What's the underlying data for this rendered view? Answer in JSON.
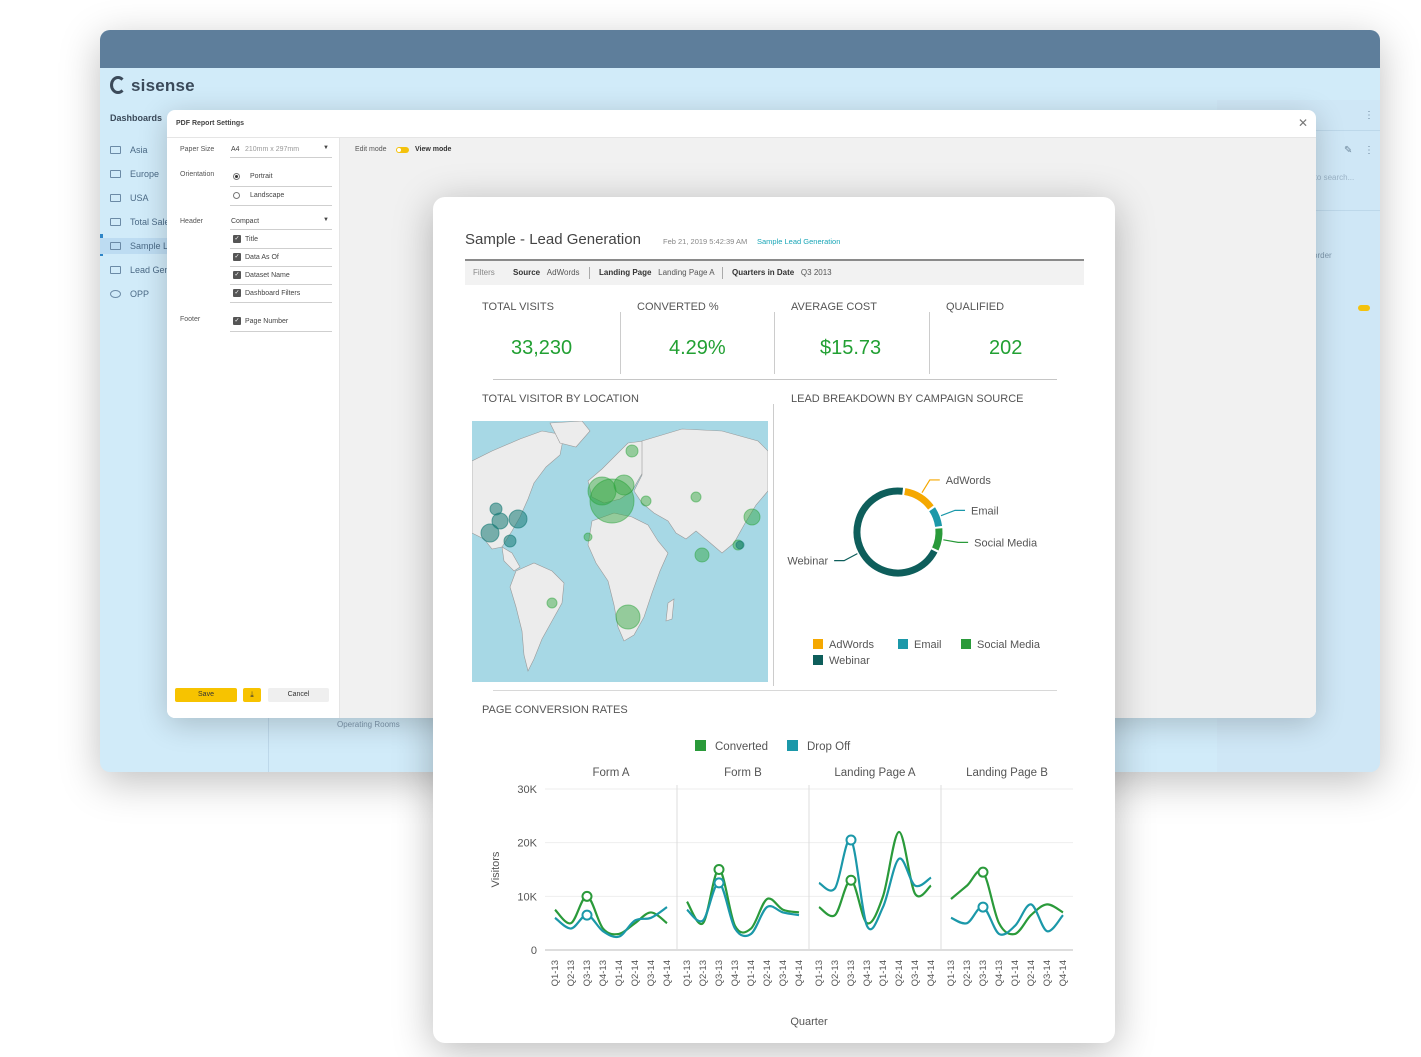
{
  "app": {
    "logo_text": "sisense",
    "dashboards_heading": "Dashboards",
    "nav_items": [
      "Asia",
      "Europe",
      "USA",
      "Total Sale",
      "Sample L",
      "Lead Gen",
      "OPP"
    ],
    "right_panel": {
      "search_placeholder": "g to search...",
      "order_label": "order"
    },
    "background_label": "Operating Rooms"
  },
  "dialog": {
    "title": "PDF Report Settings",
    "paper_size_label": "Paper Size",
    "paper_size_value": "A4",
    "paper_size_dims": "210mm x 297mm",
    "orientation_label": "Orientation",
    "orientation_options": [
      "Portrait",
      "Landscape"
    ],
    "header_label": "Header",
    "header_value": "Compact",
    "header_options": [
      "Title",
      "Data As Of",
      "Dataset Name",
      "Dashboard Filters"
    ],
    "footer_label": "Footer",
    "footer_options": [
      "Page Number"
    ],
    "save_label": "Save",
    "cancel_label": "Cancel",
    "edit_mode_label": "Edit mode",
    "view_mode_label": "View mode"
  },
  "report": {
    "title": "Sample - Lead Generation",
    "date": "Feb 21, 2019 5:42:39 AM",
    "link": "Sample Lead Generation",
    "filters_label": "Filters",
    "filters": [
      {
        "name": "Source",
        "value": "AdWords"
      },
      {
        "name": "Landing Page",
        "value": "Landing Page A"
      },
      {
        "name": "Quarters in Date",
        "value": "Q3 2013"
      }
    ],
    "kpis": [
      {
        "label": "TOTAL VISITS",
        "value": "33,230"
      },
      {
        "label": "CONVERTED %",
        "value": "4.29%"
      },
      {
        "label": "AVERAGE COST",
        "value": "$15.73"
      },
      {
        "label": "QUALIFIED",
        "value": "202"
      }
    ],
    "map_title": "TOTAL VISITOR BY LOCATION",
    "donut_title": "LEAD BREAKDOWN BY CAMPAIGN SOURCE",
    "conversion_title": "PAGE CONVERSION RATES"
  },
  "chart_data": [
    {
      "type": "pie",
      "title": "LEAD BREAKDOWN BY CAMPAIGN SOURCE",
      "categories": [
        "AdWords",
        "Email",
        "Social Media",
        "Webinar"
      ],
      "values": [
        13,
        8,
        9,
        70
      ],
      "colors": [
        "#f5a800",
        "#1b98a9",
        "#2a9a3a",
        "#0e5e5b"
      ],
      "legend": "bottom"
    },
    {
      "type": "line",
      "title": "PAGE CONVERSION RATES",
      "xlabel": "Quarter",
      "ylabel": "Visitors",
      "ylim": [
        0,
        30000
      ],
      "yticks": [
        "0",
        "10K",
        "20K",
        "30K"
      ],
      "categories": [
        "Q1-13",
        "Q2-13",
        "Q3-13",
        "Q4-13",
        "Q1-14",
        "Q2-14",
        "Q3-14",
        "Q4-14"
      ],
      "series_colors": {
        "Converted": "#2a9a3a",
        "Drop Off": "#1b98a9"
      },
      "legend": "top",
      "panels": [
        {
          "name": "Form A",
          "series": [
            {
              "name": "Converted",
              "values": [
                7500,
                5000,
                10000,
                4000,
                3000,
                5000,
                7000,
                5000
              ]
            },
            {
              "name": "Drop Off",
              "values": [
                6000,
                4000,
                6500,
                3500,
                2500,
                5500,
                6000,
                8000
              ]
            }
          ]
        },
        {
          "name": "Form B",
          "series": [
            {
              "name": "Converted",
              "values": [
                9000,
                5000,
                15000,
                4500,
                4000,
                9500,
                7500,
                7000
              ]
            },
            {
              "name": "Drop Off",
              "values": [
                7500,
                5500,
                12500,
                4000,
                3000,
                8000,
                7000,
                6500
              ]
            }
          ]
        },
        {
          "name": "Landing Page A",
          "series": [
            {
              "name": "Converted",
              "values": [
                8000,
                6500,
                13000,
                5000,
                10000,
                22000,
                10500,
                12000
              ]
            },
            {
              "name": "Drop Off",
              "values": [
                12500,
                11500,
                20500,
                4500,
                8000,
                17000,
                12000,
                13500
              ]
            }
          ]
        },
        {
          "name": "Landing Page B",
          "series": [
            {
              "name": "Converted",
              "values": [
                9500,
                12000,
                14500,
                5000,
                3000,
                6500,
                8500,
                7000
              ]
            },
            {
              "name": "Drop Off",
              "values": [
                6000,
                5000,
                8000,
                3000,
                4500,
                8500,
                3500,
                6500
              ]
            }
          ]
        }
      ]
    }
  ]
}
